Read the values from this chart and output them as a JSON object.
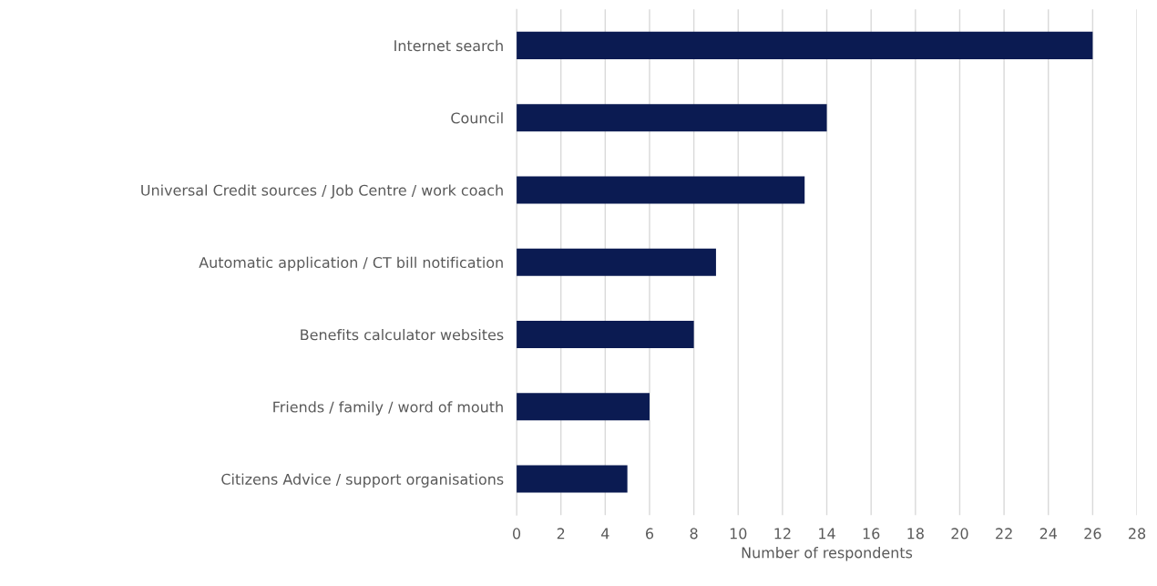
{
  "chart_data": {
    "type": "bar",
    "orientation": "horizontal",
    "xlabel": "Number of respondents",
    "categories": [
      "Internet search",
      "Council",
      "Universal Credit sources / Job Centre / work coach",
      "Automatic application / CT bill notification",
      "Benefits calculator websites",
      "Friends / family / word of mouth",
      "Citizens Advice / support organisations"
    ],
    "values": [
      26,
      14,
      13,
      9,
      8,
      6,
      5
    ],
    "color": "#0b1b52",
    "xlim": [
      0,
      28
    ],
    "xticks": [
      0,
      2,
      4,
      6,
      8,
      10,
      12,
      14,
      16,
      18,
      20,
      22,
      24,
      26,
      28
    ],
    "grid": "x"
  }
}
